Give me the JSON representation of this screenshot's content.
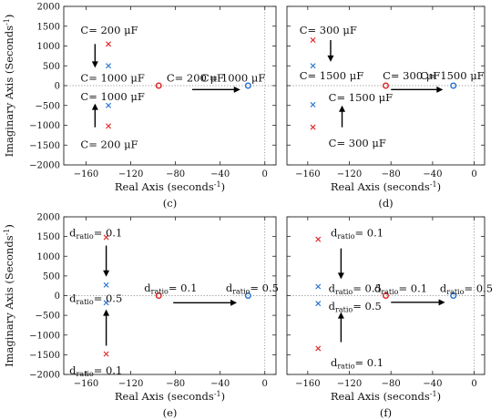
{
  "chart_data": [
    {
      "type": "scatter",
      "panel_label": "(c)",
      "xlabel": "Real Axis (seconds",
      "xlabel_sup": "-1",
      "xlabel_close": ")",
      "ylabel": "Imaginary Axis (Seconds",
      "ylabel_sup": "-1",
      "ylabel_close": ")",
      "xlim": [
        -180,
        10
      ],
      "ylim": [
        -2000,
        2000
      ],
      "xticks": [
        -160,
        -120,
        -80,
        -40,
        0
      ],
      "yticks": [
        2000,
        1500,
        1000,
        500,
        0,
        -500,
        -1000,
        -1500,
        -2000
      ],
      "series": [
        {
          "marker": "x",
          "color": "#e02020",
          "points": [
            [
              -140,
              1050
            ],
            [
              -140,
              -1020
            ]
          ]
        },
        {
          "marker": "x",
          "color": "#1f6fd0",
          "points": [
            [
              -140,
              500
            ],
            [
              -140,
              -500
            ]
          ]
        },
        {
          "marker": "o",
          "color": "#e02020",
          "points": [
            [
              -95,
              0
            ]
          ]
        },
        {
          "marker": "o",
          "color": "#1f6fd0",
          "points": [
            [
              -15,
              0
            ]
          ]
        }
      ],
      "annotations": [
        {
          "parts": [
            {
              "t": "C= 200 μF"
            }
          ],
          "x": -165,
          "y": 1400
        },
        {
          "parts": [
            {
              "t": "C= 1000 μF"
            }
          ],
          "x": -165,
          "y": 200
        },
        {
          "parts": [
            {
              "t": "C= 1000 μF"
            }
          ],
          "x": -165,
          "y": -280
        },
        {
          "parts": [
            {
              "t": "C= 200 μF"
            }
          ],
          "x": -165,
          "y": -1480
        },
        {
          "parts": [
            {
              "t": "C= 200 μF"
            }
          ],
          "x": -88,
          "y": 200
        },
        {
          "parts": [
            {
              "t": "C= 1000 μF"
            }
          ],
          "x": -57,
          "y": 200
        }
      ],
      "arrows": [
        {
          "from": [
            -152,
            1050
          ],
          "to": [
            -152,
            450
          ]
        },
        {
          "from": [
            -152,
            -1050
          ],
          "to": [
            -152,
            -450
          ]
        },
        {
          "from": [
            -65,
            -100
          ],
          "to": [
            -22,
            -100
          ]
        }
      ]
    },
    {
      "type": "scatter",
      "panel_label": "(d)",
      "xlabel": "Real Axis (seconds",
      "xlabel_sup": "-1",
      "xlabel_close": ")",
      "ylabel": "",
      "xlim": [
        -180,
        10
      ],
      "ylim": [
        -2000,
        2000
      ],
      "xticks": [
        -160,
        -120,
        -80,
        -40,
        0
      ],
      "yticks": [
        2000,
        1500,
        1000,
        500,
        0,
        -500,
        -1000,
        -1500,
        -2000
      ],
      "series": [
        {
          "marker": "x",
          "color": "#e02020",
          "points": [
            [
              -155,
              1150
            ],
            [
              -155,
              -1050
            ]
          ]
        },
        {
          "marker": "x",
          "color": "#1f6fd0",
          "points": [
            [
              -155,
              500
            ],
            [
              -155,
              -480
            ]
          ]
        },
        {
          "marker": "o",
          "color": "#e02020",
          "points": [
            [
              -85,
              0
            ]
          ]
        },
        {
          "marker": "o",
          "color": "#1f6fd0",
          "points": [
            [
              -20,
              0
            ]
          ]
        }
      ],
      "annotations": [
        {
          "parts": [
            {
              "t": "C= 300 μF"
            }
          ],
          "x": -168,
          "y": 1400
        },
        {
          "parts": [
            {
              "t": "C= 1500 μF"
            }
          ],
          "x": -168,
          "y": 250
        },
        {
          "parts": [
            {
              "t": "C= 300 μF"
            }
          ],
          "x": -88,
          "y": 250
        },
        {
          "parts": [
            {
              "t": "C= 1500 μF"
            }
          ],
          "x": -52,
          "y": 250
        },
        {
          "parts": [
            {
              "t": "C= 1500 μF"
            }
          ],
          "x": -140,
          "y": -300
        },
        {
          "parts": [
            {
              "t": "C= 300 μF"
            }
          ],
          "x": -140,
          "y": -1450
        }
      ],
      "arrows": [
        {
          "from": [
            -138,
            1150
          ],
          "to": [
            -138,
            600
          ]
        },
        {
          "from": [
            -127,
            -1050
          ],
          "to": [
            -127,
            -500
          ]
        },
        {
          "from": [
            -80,
            -100
          ],
          "to": [
            -30,
            -100
          ]
        }
      ]
    },
    {
      "type": "scatter",
      "panel_label": "(e)",
      "xlabel": "Real Axis (seconds",
      "xlabel_sup": "-1",
      "xlabel_close": ")",
      "ylabel": "Imaginary Axis (Seconds",
      "ylabel_sup": "-1",
      "ylabel_close": ")",
      "xlim": [
        -180,
        10
      ],
      "ylim": [
        -2000,
        2000
      ],
      "xticks": [
        -160,
        -120,
        -80,
        -40,
        0
      ],
      "yticks": [
        2000,
        1500,
        1000,
        500,
        0,
        -500,
        -1000,
        -1500,
        -2000
      ],
      "series": [
        {
          "marker": "x",
          "color": "#e02020",
          "points": [
            [
              -142,
              1480
            ],
            [
              -142,
              -1480
            ]
          ]
        },
        {
          "marker": "x",
          "color": "#1f6fd0",
          "points": [
            [
              -142,
              270
            ],
            [
              -142,
              -180
            ]
          ]
        },
        {
          "marker": "o",
          "color": "#e02020",
          "points": [
            [
              -95,
              0
            ]
          ]
        },
        {
          "marker": "o",
          "color": "#1f6fd0",
          "points": [
            [
              -15,
              0
            ]
          ]
        }
      ],
      "annotations": [
        {
          "parts": [
            {
              "t": "d"
            },
            {
              "t": "ratio",
              "sub": true
            },
            {
              "t": "= 0.1"
            }
          ],
          "x": -175,
          "y": 1600
        },
        {
          "parts": [
            {
              "t": "d"
            },
            {
              "t": "ratio",
              "sub": true
            },
            {
              "t": "= 0.5"
            }
          ],
          "x": -175,
          "y": -70
        },
        {
          "parts": [
            {
              "t": "d"
            },
            {
              "t": "ratio",
              "sub": true
            },
            {
              "t": "= 0.1"
            }
          ],
          "x": -108,
          "y": 200
        },
        {
          "parts": [
            {
              "t": "d"
            },
            {
              "t": "ratio",
              "sub": true
            },
            {
              "t": "= 0.5"
            }
          ],
          "x": -35,
          "y": 200
        },
        {
          "parts": [
            {
              "t": "d"
            },
            {
              "t": "ratio",
              "sub": true
            },
            {
              "t": "= 0.1"
            }
          ],
          "x": -175,
          "y": -1900
        }
      ],
      "arrows": [
        {
          "from": [
            -142,
            1270
          ],
          "to": [
            -142,
            480
          ]
        },
        {
          "from": [
            -142,
            -1270
          ],
          "to": [
            -142,
            -350
          ]
        },
        {
          "from": [
            -82,
            -180
          ],
          "to": [
            -25,
            -180
          ]
        }
      ]
    },
    {
      "type": "scatter",
      "panel_label": "(f)",
      "xlabel": "Real Axis (seconds",
      "xlabel_sup": "-1",
      "xlabel_close": ")",
      "ylabel": "",
      "xlim": [
        -180,
        10
      ],
      "ylim": [
        -2000,
        2000
      ],
      "xticks": [
        -160,
        -120,
        -80,
        -40,
        0
      ],
      "yticks": [
        2000,
        1500,
        1000,
        500,
        0,
        -500,
        -1000,
        -1500,
        -2000
      ],
      "series": [
        {
          "marker": "x",
          "color": "#e02020",
          "points": [
            [
              -150,
              1430
            ],
            [
              -150,
              -1340
            ]
          ]
        },
        {
          "marker": "x",
          "color": "#1f6fd0",
          "points": [
            [
              -150,
              230
            ],
            [
              -150,
              -200
            ]
          ]
        },
        {
          "marker": "o",
          "color": "#e02020",
          "points": [
            [
              -85,
              0
            ]
          ]
        },
        {
          "marker": "o",
          "color": "#1f6fd0",
          "points": [
            [
              -20,
              0
            ]
          ]
        }
      ],
      "annotations": [
        {
          "parts": [
            {
              "t": "d"
            },
            {
              "t": "ratio",
              "sub": true
            },
            {
              "t": "= 0.1"
            }
          ],
          "x": -138,
          "y": 1600
        },
        {
          "parts": [
            {
              "t": "d"
            },
            {
              "t": "ratio",
              "sub": true
            },
            {
              "t": "= 0.5"
            }
          ],
          "x": -140,
          "y": 190
        },
        {
          "parts": [
            {
              "t": "d"
            },
            {
              "t": "ratio",
              "sub": true
            },
            {
              "t": "= 0.5"
            }
          ],
          "x": -140,
          "y": -270
        },
        {
          "parts": [
            {
              "t": "d"
            },
            {
              "t": "ratio",
              "sub": true
            },
            {
              "t": "= 0.1"
            }
          ],
          "x": -96,
          "y": 190
        },
        {
          "parts": [
            {
              "t": "d"
            },
            {
              "t": "ratio",
              "sub": true
            },
            {
              "t": "= 0.5"
            }
          ],
          "x": -33,
          "y": 190
        },
        {
          "parts": [
            {
              "t": "d"
            },
            {
              "t": "ratio",
              "sub": true
            },
            {
              "t": "= 0.1"
            }
          ],
          "x": -138,
          "y": -1700
        }
      ],
      "arrows": [
        {
          "from": [
            -128,
            1200
          ],
          "to": [
            -128,
            420
          ]
        },
        {
          "from": [
            -128,
            -1180
          ],
          "to": [
            -128,
            -420
          ]
        },
        {
          "from": [
            -80,
            -170
          ],
          "to": [
            -28,
            -170
          ]
        }
      ]
    }
  ]
}
